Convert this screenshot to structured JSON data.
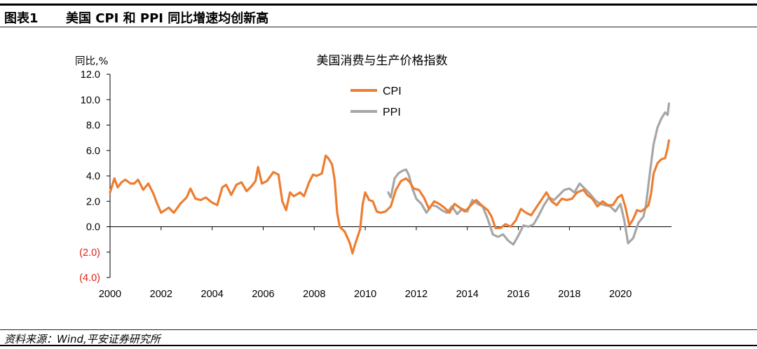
{
  "header": {
    "figure_number": "图表1",
    "title": "美国 CPI 和 PPI 同比增速均创新高"
  },
  "source": "资料来源：Wind,平安证券研究所",
  "colors": {
    "cpi": "#ED7D31",
    "ppi": "#A6A6A6",
    "negative_label": "#E0221B"
  },
  "chart_data": {
    "type": "line",
    "title": "美国消费与生产价格指数",
    "ylabel": "同比,%",
    "ylim": [
      -4,
      12
    ],
    "yticks": [
      12,
      10,
      8,
      6,
      4,
      2,
      0,
      -2,
      -4
    ],
    "ytick_labels": [
      "12.0",
      "10.0",
      "8.0",
      "6.0",
      "4.0",
      "2.0",
      "0.0",
      "(2.0)",
      "(4.0)"
    ],
    "xlim": [
      2000,
      2022
    ],
    "xtick_labels": [
      "2000",
      "2002",
      "2004",
      "2006",
      "2008",
      "2010",
      "2012",
      "2014",
      "2016",
      "2018",
      "2020"
    ],
    "xticks": [
      2000,
      2002,
      2004,
      2006,
      2008,
      2010,
      2012,
      2014,
      2016,
      2018,
      2020
    ],
    "grid": false,
    "legend_position": "top-center",
    "series": [
      {
        "name": "CPI",
        "x": [
          2000.0,
          2000.17,
          2000.3,
          2000.45,
          2000.6,
          2000.8,
          2000.95,
          2001.1,
          2001.3,
          2001.5,
          2001.7,
          2001.85,
          2002.0,
          2002.15,
          2002.3,
          2002.5,
          2002.75,
          2003.0,
          2003.15,
          2003.35,
          2003.55,
          2003.75,
          2004.0,
          2004.2,
          2004.4,
          2004.55,
          2004.75,
          2004.95,
          2005.15,
          2005.35,
          2005.55,
          2005.7,
          2005.8,
          2005.95,
          2006.15,
          2006.4,
          2006.6,
          2006.75,
          2006.9,
          2007.05,
          2007.2,
          2007.45,
          2007.6,
          2007.8,
          2007.95,
          2008.1,
          2008.3,
          2008.45,
          2008.55,
          2008.7,
          2008.8,
          2008.9,
          2009.0,
          2009.2,
          2009.4,
          2009.5,
          2009.6,
          2009.8,
          2009.9,
          2010.0,
          2010.15,
          2010.3,
          2010.45,
          2010.6,
          2010.8,
          2011.0,
          2011.2,
          2011.4,
          2011.6,
          2011.75,
          2011.9,
          2012.1,
          2012.3,
          2012.5,
          2012.7,
          2012.9,
          2013.1,
          2013.3,
          2013.5,
          2013.7,
          2013.9,
          2014.1,
          2014.35,
          2014.55,
          2014.8,
          2014.95,
          2015.1,
          2015.3,
          2015.5,
          2015.7,
          2015.9,
          2016.1,
          2016.3,
          2016.5,
          2016.7,
          2016.9,
          2017.1,
          2017.3,
          2017.5,
          2017.7,
          2017.9,
          2018.1,
          2018.3,
          2018.55,
          2018.7,
          2018.9,
          2019.1,
          2019.3,
          2019.5,
          2019.7,
          2019.9,
          2020.05,
          2020.2,
          2020.35,
          2020.5,
          2020.65,
          2020.8,
          2020.95,
          2021.1,
          2021.2,
          2021.3,
          2021.45,
          2021.6,
          2021.75,
          2021.85,
          2021.9
        ],
        "values": [
          2.7,
          3.8,
          3.1,
          3.5,
          3.7,
          3.4,
          3.4,
          3.7,
          2.9,
          3.4,
          2.6,
          1.8,
          1.1,
          1.3,
          1.5,
          1.1,
          1.8,
          2.3,
          3.0,
          2.2,
          2.1,
          2.3,
          1.9,
          1.7,
          3.1,
          3.3,
          2.5,
          3.3,
          3.5,
          2.8,
          3.2,
          3.6,
          4.7,
          3.4,
          3.6,
          4.3,
          4.1,
          2.0,
          1.3,
          2.7,
          2.4,
          2.7,
          2.4,
          3.5,
          4.1,
          4.0,
          4.2,
          5.6,
          5.4,
          4.9,
          3.7,
          1.1,
          0.0,
          -0.4,
          -1.3,
          -2.1,
          -1.4,
          -0.2,
          1.8,
          2.7,
          2.1,
          2.0,
          1.2,
          1.1,
          1.2,
          1.6,
          2.9,
          3.6,
          3.8,
          3.5,
          3.0,
          2.9,
          2.3,
          1.4,
          2.0,
          1.8,
          1.5,
          1.1,
          1.8,
          1.5,
          1.2,
          1.6,
          2.1,
          1.7,
          1.3,
          0.8,
          -0.1,
          -0.1,
          0.2,
          0.0,
          0.5,
          1.4,
          1.1,
          0.9,
          1.5,
          2.1,
          2.7,
          2.0,
          1.7,
          2.2,
          2.1,
          2.2,
          2.7,
          2.9,
          2.5,
          2.2,
          1.6,
          2.0,
          1.7,
          1.7,
          2.3,
          2.5,
          1.5,
          0.1,
          0.6,
          1.3,
          1.2,
          1.4,
          1.7,
          2.6,
          4.2,
          5.0,
          5.3,
          5.4,
          6.2,
          6.8
        ]
      },
      {
        "name": "PPI",
        "x": [
          2010.9,
          2011.0,
          2011.15,
          2011.3,
          2011.45,
          2011.6,
          2011.7,
          2011.85,
          2012.0,
          2012.2,
          2012.4,
          2012.6,
          2012.8,
          2013.0,
          2013.2,
          2013.4,
          2013.6,
          2013.8,
          2014.0,
          2014.2,
          2014.4,
          2014.6,
          2014.8,
          2015.0,
          2015.2,
          2015.4,
          2015.6,
          2015.8,
          2016.0,
          2016.2,
          2016.4,
          2016.6,
          2016.8,
          2017.0,
          2017.2,
          2017.4,
          2017.6,
          2017.8,
          2018.0,
          2018.2,
          2018.4,
          2018.6,
          2018.8,
          2019.0,
          2019.2,
          2019.4,
          2019.6,
          2019.8,
          2020.0,
          2020.15,
          2020.3,
          2020.5,
          2020.7,
          2020.9,
          2021.0,
          2021.15,
          2021.3,
          2021.45,
          2021.6,
          2021.75,
          2021.85,
          2021.9
        ],
        "values": [
          2.7,
          2.3,
          3.8,
          4.2,
          4.4,
          4.5,
          4.1,
          3.0,
          2.2,
          1.8,
          1.1,
          1.7,
          1.6,
          1.3,
          1.1,
          1.6,
          1.0,
          1.4,
          1.2,
          2.1,
          1.8,
          1.6,
          0.6,
          -0.6,
          -0.8,
          -0.6,
          -1.1,
          -1.4,
          -0.7,
          0.1,
          0.0,
          0.2,
          0.9,
          1.7,
          2.3,
          2.1,
          2.5,
          2.9,
          3.0,
          2.7,
          3.4,
          3.0,
          2.6,
          2.1,
          1.8,
          1.7,
          1.6,
          1.2,
          1.8,
          0.5,
          -1.3,
          -0.9,
          0.3,
          0.8,
          1.7,
          4.2,
          6.5,
          7.8,
          8.5,
          9.0,
          8.8,
          9.7
        ]
      }
    ]
  }
}
